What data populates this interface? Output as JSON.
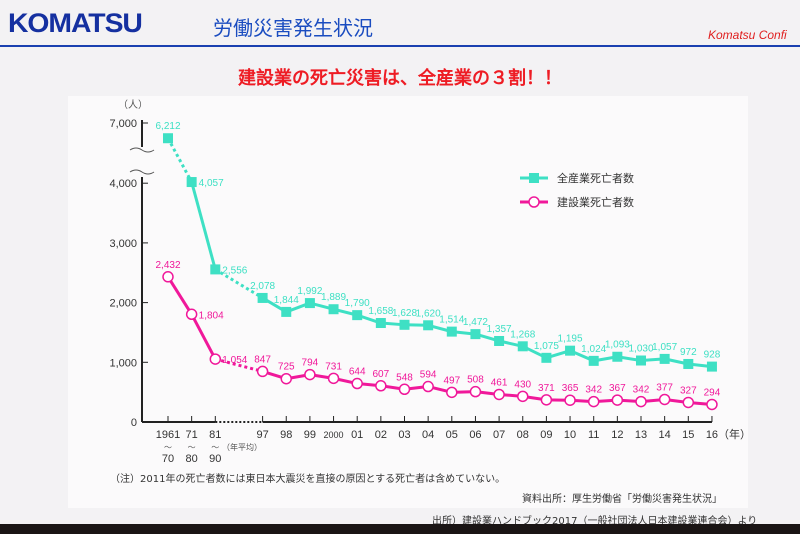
{
  "header": {
    "logo": "KOMATSU",
    "title": "労働災害発生状況",
    "confidential": "Komatsu Confi"
  },
  "headline": "建設業の死亡災害は、全産業の３割！！",
  "colors": {
    "all_industry": "#3ee0c4",
    "construction": "#f0189a",
    "headline": "#ee1c24",
    "brand": "#1530a0"
  },
  "chart_data": {
    "type": "line",
    "ylabel": "（人）",
    "xlabel_unit": "（年）",
    "y_ticks": [
      "0",
      "1,000",
      "2,000",
      "3,000",
      "4,000",
      "7,000"
    ],
    "y_axis_break": [
      4000,
      7000
    ],
    "ylim": [
      0,
      7000
    ],
    "categories": [
      "1961〜70",
      "71〜80",
      "81〜90",
      "97",
      "98",
      "99",
      "2000",
      "01",
      "02",
      "03",
      "04",
      "05",
      "06",
      "07",
      "08",
      "09",
      "10",
      "11",
      "12",
      "13",
      "14",
      "15",
      "16"
    ],
    "x_tick_top": [
      "1961",
      "71",
      "81",
      "97",
      "98",
      "99",
      "2000",
      "01",
      "02",
      "03",
      "04",
      "05",
      "06",
      "07",
      "08",
      "09",
      "10",
      "11",
      "12",
      "13",
      "14",
      "15",
      "16"
    ],
    "x_tick_bottom": [
      "70",
      "80",
      "90"
    ],
    "x_tick_range_mark": "〜",
    "avg_note": "（年平均）",
    "series": [
      {
        "name": "全産業死亡者数",
        "marker": "square",
        "values": [
          6212,
          4057,
          2556,
          2078,
          1844,
          1992,
          1889,
          1790,
          1658,
          1628,
          1620,
          1514,
          1472,
          1357,
          1268,
          1075,
          1195,
          1024,
          1093,
          1030,
          1057,
          972,
          928
        ],
        "labels": [
          "6,212",
          "4,057",
          "2,556",
          "2,078",
          "1,844",
          "1,992",
          "1,889",
          "1,790",
          "1,658",
          "1,628",
          "1,620",
          "1,514",
          "1,472",
          "1,357",
          "1,268",
          "1,075",
          "1,195",
          "1,024",
          "1,093",
          "1,030",
          "1,057",
          "972",
          "928"
        ]
      },
      {
        "name": "建設業死亡者数",
        "marker": "circle",
        "values": [
          2432,
          1804,
          1054,
          847,
          725,
          794,
          731,
          644,
          607,
          548,
          594,
          497,
          508,
          461,
          430,
          371,
          365,
          342,
          367,
          342,
          377,
          327,
          294
        ],
        "labels": [
          "2,432",
          "1,804",
          "1,054",
          "847",
          "725",
          "794",
          "731",
          "644",
          "607",
          "548",
          "594",
          "497",
          "508",
          "461",
          "430",
          "371",
          "365",
          "342",
          "367",
          "342",
          "377",
          "327",
          "294"
        ]
      }
    ],
    "legend": "top-right",
    "grid": false
  },
  "notes": {
    "footnote": "（注）2011年の死亡者数には東日本大震災を直接の原因とする死亡者は含めていない。",
    "source1": "資料出所：厚生労働省「労働災害発生状況」",
    "source2": "出所）建設業ハンドブック2017（一般社団法人日本建設業連合会）より"
  }
}
